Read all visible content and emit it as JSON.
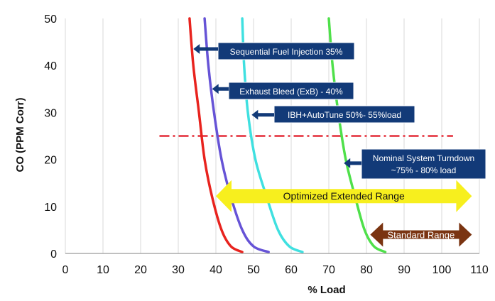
{
  "chart_data": {
    "type": "line",
    "xlabel": "% Load",
    "ylabel": "CO (PPM Corr)",
    "xlim": [
      0,
      110
    ],
    "ylim": [
      0,
      50
    ],
    "xticks": [
      "0",
      "10",
      "20",
      "30",
      "40",
      "50",
      "60",
      "70",
      "80",
      "90",
      "100",
      "110"
    ],
    "yticks": [
      "0",
      "10",
      "20",
      "30",
      "40",
      "50"
    ],
    "grid": "vertical",
    "series": [
      {
        "color": "#e8231e",
        "points": [
          [
            33,
            50
          ],
          [
            34,
            40
          ],
          [
            35.5,
            30
          ],
          [
            37,
            20
          ],
          [
            39,
            12
          ],
          [
            41.5,
            5
          ],
          [
            44,
            1.5
          ],
          [
            47,
            0.3
          ]
        ]
      },
      {
        "color": "#6653d6",
        "points": [
          [
            37,
            50
          ],
          [
            38,
            40
          ],
          [
            39.5,
            30
          ],
          [
            41.5,
            20
          ],
          [
            44,
            12
          ],
          [
            47,
            5
          ],
          [
            50,
            1.5
          ],
          [
            54,
            0.3
          ]
        ]
      },
      {
        "color": "#3fe0e0",
        "points": [
          [
            47,
            50
          ],
          [
            47.5,
            40
          ],
          [
            48.5,
            30
          ],
          [
            50.5,
            20
          ],
          [
            53.5,
            12
          ],
          [
            56.5,
            5
          ],
          [
            59.5,
            1.5
          ],
          [
            63,
            0.3
          ]
        ]
      },
      {
        "color": "#4fe04a",
        "points": [
          [
            70,
            50
          ],
          [
            71,
            40
          ],
          [
            72.5,
            30
          ],
          [
            74.5,
            20
          ],
          [
            77,
            12
          ],
          [
            79.5,
            5
          ],
          [
            82,
            1.5
          ],
          [
            85,
            0.3
          ]
        ]
      }
    ],
    "reference_line": {
      "y": 25,
      "x_from": 25,
      "x_to": 103,
      "color": "#e8505a",
      "style": "dash-dot"
    },
    "callouts": [
      {
        "text": "Sequential Fuel Injection 35%",
        "arrow_to": [
          34,
          43.5
        ]
      },
      {
        "text": "Exhaust Bleed (ExB) - 40%",
        "arrow_to": [
          39,
          35
        ]
      },
      {
        "text": "IBH+AutoTune 50%- 55%load",
        "arrow_to": [
          49.5,
          29.5
        ]
      },
      {
        "text": "Nominal System Turndown",
        "text2": "~75% - 80% load",
        "arrow_to": [
          74,
          19.2
        ]
      }
    ],
    "range_arrows": [
      {
        "text": "Optimized Extended Range",
        "x_from": 40,
        "x_to": 108,
        "y": 12.2,
        "color": "#f7ef1e"
      },
      {
        "text": "Standard Range",
        "x_from": 81,
        "x_to": 108,
        "y": 4,
        "color": "#7a3411"
      }
    ]
  }
}
